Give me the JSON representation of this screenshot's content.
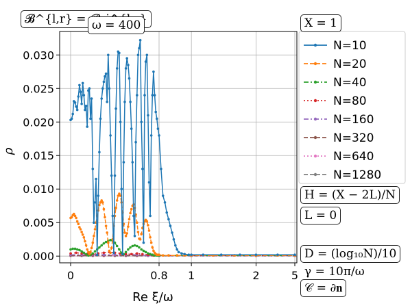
{
  "annotations": {
    "bc": "𝓑^{l,r} = 𝓑_j^{l,r}",
    "omega": "ω = 400",
    "X": "X = 1",
    "H": "H = (X − 2L)/N",
    "L": "L = 0",
    "D": "D = (log₁₀N)/10",
    "gamma": "γ = 10π/ω",
    "C": "𝒞 = ∂𝐧"
  },
  "chart_data": {
    "type": "line",
    "title": "",
    "xlabel": "Re ξ/ω",
    "ylabel": "ρ",
    "x_scale": "piecewise: linear 0–0.8, then reciprocal",
    "xticks": [
      "0",
      "0.8",
      "1",
      "2",
      "5"
    ],
    "yticks": [
      "0.000",
      "0.005",
      "0.010",
      "0.015",
      "0.020",
      "0.025",
      "0.030"
    ],
    "ylim": [
      -0.001,
      0.0335
    ],
    "grid": true,
    "legend": "right, outside plot",
    "series": [
      {
        "name": "N=10",
        "color": "#1f77b4",
        "style": "solid",
        "x": [
          0.0,
          0.01,
          0.02,
          0.03,
          0.04,
          0.05,
          0.06,
          0.07,
          0.08,
          0.09,
          0.1,
          0.11,
          0.12,
          0.13,
          0.14,
          0.15,
          0.16,
          0.17,
          0.18,
          0.19,
          0.2,
          0.21,
          0.22,
          0.23,
          0.24,
          0.25,
          0.26,
          0.27,
          0.28,
          0.29,
          0.3,
          0.31,
          0.32,
          0.33,
          0.34,
          0.35,
          0.36,
          0.37,
          0.38,
          0.39,
          0.4,
          0.41,
          0.42,
          0.43,
          0.44,
          0.45,
          0.46,
          0.47,
          0.48,
          0.49,
          0.5,
          0.51,
          0.52,
          0.53,
          0.54,
          0.55,
          0.56,
          0.57,
          0.58,
          0.59,
          0.6,
          0.61,
          0.62,
          0.63,
          0.64,
          0.65,
          0.66,
          0.67,
          0.68,
          0.69,
          0.7,
          0.71,
          0.72,
          0.73,
          0.74,
          0.75,
          0.76,
          0.77,
          0.78,
          0.79,
          0.8,
          0.81,
          0.82,
          0.83,
          0.84,
          0.85,
          0.86,
          0.87,
          0.88,
          0.89,
          0.9,
          0.91,
          0.93,
          0.95,
          0.98,
          1.0,
          1.1,
          1.3,
          1.6,
          2.0,
          3.0,
          5.0
        ],
        "y": [
          0.0203,
          0.0205,
          0.0212,
          0.0231,
          0.0229,
          0.0223,
          0.0218,
          0.0238,
          0.0255,
          0.0245,
          0.0227,
          0.0258,
          0.024,
          0.0218,
          0.0224,
          0.0193,
          0.0247,
          0.025,
          0.0205,
          0.0235,
          0.013,
          0.005,
          0.008,
          0.0115,
          0.0002,
          0.009,
          0.0155,
          0.0205,
          0.0235,
          0.025,
          0.026,
          0.0268,
          0.0272,
          0.023,
          0.03,
          0.025,
          0.018,
          0.012,
          0.006,
          0.0005,
          0.012,
          0.022,
          0.028,
          0.0305,
          0.0303,
          0.02,
          0.01,
          0.0003,
          0.014,
          0.023,
          0.028,
          0.0295,
          0.0285,
          0.0265,
          0.023,
          0.019,
          0.014,
          0.006,
          0.003,
          0.017,
          0.024,
          0.03,
          0.031,
          0.0322,
          0.02,
          0.013,
          0.002,
          0.024,
          0.029,
          0.03,
          0.021,
          0.011,
          0.006,
          0.018,
          0.024,
          0.0275,
          0.024,
          0.0215,
          0.0205,
          0.019,
          0.018,
          0.013,
          0.009,
          0.008,
          0.0065,
          0.0055,
          0.0045,
          0.0035,
          0.0025,
          0.0016,
          0.001,
          0.0006,
          0.0004,
          0.0003,
          0.0002,
          0.0002,
          0.0002,
          0.0002,
          0.0002,
          0.0002,
          0.0002,
          0.0002
        ]
      },
      {
        "name": "N=20",
        "color": "#ff7f0e",
        "style": "dashed",
        "x": [
          0.0,
          0.01,
          0.02,
          0.03,
          0.04,
          0.05,
          0.06,
          0.07,
          0.08,
          0.09,
          0.1,
          0.11,
          0.12,
          0.13,
          0.14,
          0.15,
          0.16,
          0.17,
          0.18,
          0.19,
          0.2,
          0.21,
          0.22,
          0.23,
          0.24,
          0.25,
          0.26,
          0.27,
          0.28,
          0.29,
          0.3,
          0.31,
          0.32,
          0.33,
          0.34,
          0.35,
          0.36,
          0.37,
          0.38,
          0.39,
          0.4,
          0.41,
          0.42,
          0.43,
          0.44,
          0.45,
          0.46,
          0.47,
          0.48,
          0.49,
          0.5,
          0.51,
          0.52,
          0.53,
          0.54,
          0.55,
          0.56,
          0.57,
          0.58,
          0.59,
          0.6,
          0.61,
          0.62,
          0.63,
          0.64,
          0.65,
          0.66,
          0.67,
          0.68,
          0.69,
          0.7,
          0.71,
          0.72,
          0.73,
          0.74,
          0.75,
          0.76,
          0.77,
          0.78,
          0.79,
          0.8,
          0.82,
          0.85,
          0.9,
          0.95,
          1.0,
          1.2,
          1.5,
          2.0,
          3.0,
          5.0
        ],
        "y": [
          0.0057,
          0.0058,
          0.0061,
          0.0063,
          0.006,
          0.0057,
          0.0052,
          0.0048,
          0.0043,
          0.004,
          0.0036,
          0.0032,
          0.0028,
          0.0022,
          0.0016,
          0.001,
          0.0006,
          0.0003,
          0.0006,
          0.0012,
          0.002,
          0.003,
          0.004,
          0.005,
          0.006,
          0.0068,
          0.0076,
          0.008,
          0.0083,
          0.008,
          0.007,
          0.0058,
          0.0045,
          0.0035,
          0.002,
          0.0008,
          0.0005,
          0.0012,
          0.0025,
          0.0045,
          0.006,
          0.0072,
          0.0083,
          0.009,
          0.0093,
          0.009,
          0.008,
          0.0065,
          0.0048,
          0.0035,
          0.003,
          0.0034,
          0.0044,
          0.0055,
          0.0064,
          0.007,
          0.0075,
          0.0077,
          0.0072,
          0.0062,
          0.005,
          0.0036,
          0.0026,
          0.0025,
          0.0033,
          0.0042,
          0.0048,
          0.0052,
          0.0054,
          0.0052,
          0.0046,
          0.0038,
          0.0028,
          0.002,
          0.0013,
          0.0008,
          0.0005,
          0.0003,
          0.0002,
          0.0002,
          0.0002,
          0.0001,
          0.0001,
          0.0001,
          0.0001,
          0.0001,
          0.0001,
          0.0001,
          0.0001,
          0.0001,
          0.0001
        ]
      },
      {
        "name": "N=40",
        "color": "#2ca02c",
        "style": "dashdot",
        "x": [
          0.0,
          0.02,
          0.04,
          0.06,
          0.08,
          0.1,
          0.12,
          0.14,
          0.16,
          0.18,
          0.2,
          0.22,
          0.24,
          0.26,
          0.28,
          0.3,
          0.32,
          0.34,
          0.36,
          0.38,
          0.4,
          0.42,
          0.44,
          0.46,
          0.48,
          0.5,
          0.52,
          0.54,
          0.56,
          0.58,
          0.6,
          0.62,
          0.64,
          0.66,
          0.68,
          0.7,
          0.72,
          0.74,
          0.76,
          0.78,
          0.8,
          0.85,
          0.9,
          1.0,
          1.5,
          2.0,
          3.0,
          5.0
        ],
        "y": [
          0.001,
          0.0011,
          0.0011,
          0.001,
          0.0009,
          0.0007,
          0.0005,
          0.0003,
          0.0001,
          0.0002,
          0.0004,
          0.0007,
          0.001,
          0.0013,
          0.0016,
          0.0019,
          0.0021,
          0.0023,
          0.0024,
          0.0023,
          0.002,
          0.0015,
          0.001,
          0.0005,
          0.0003,
          0.0006,
          0.001,
          0.0013,
          0.0015,
          0.0016,
          0.0015,
          0.0013,
          0.001,
          0.0008,
          0.0006,
          0.0004,
          0.0003,
          0.0002,
          0.0001,
          0.0001,
          0.0001,
          0.0001,
          0.0001,
          0.0001,
          0.0001,
          0.0001,
          0.0001,
          0.0001
        ]
      },
      {
        "name": "N=80",
        "color": "#d62728",
        "style": "dotted",
        "x": [
          0.0,
          0.05,
          0.1,
          0.15,
          0.2,
          0.25,
          0.3,
          0.35,
          0.4,
          0.45,
          0.5,
          0.55,
          0.6,
          0.65,
          0.7,
          0.75,
          0.8,
          0.9,
          1.0,
          1.5,
          2.0,
          3.0,
          5.0
        ],
        "y": [
          0.0004,
          0.0005,
          0.0004,
          0.0003,
          0.0003,
          0.0004,
          0.0005,
          0.0006,
          0.0005,
          0.0004,
          0.0003,
          0.0003,
          0.0004,
          0.0003,
          0.0002,
          0.0001,
          0.0001,
          0.0001,
          0.0001,
          0.0001,
          0.0001,
          0.0001,
          0.0001
        ]
      },
      {
        "name": "N=160",
        "color": "#9467bd",
        "style": "dashdot",
        "x": [
          0.0,
          0.1,
          0.2,
          0.3,
          0.4,
          0.5,
          0.6,
          0.7,
          0.8,
          1.0,
          2.0,
          5.0
        ],
        "y": [
          0.0002,
          0.0002,
          0.0002,
          0.0002,
          0.0002,
          0.0002,
          0.0002,
          0.0001,
          0.0001,
          0.0001,
          0.0001,
          0.0001
        ]
      },
      {
        "name": "N=320",
        "color": "#8c564b",
        "style": "dashed",
        "x": [
          0.0,
          0.1,
          0.2,
          0.3,
          0.4,
          0.5,
          0.6,
          0.7,
          0.8,
          1.0,
          2.0,
          5.0
        ],
        "y": [
          0.0001,
          0.0001,
          0.0001,
          0.0001,
          0.0001,
          0.0001,
          0.0001,
          0.0001,
          0.0001,
          0.0001,
          0.0001,
          0.0001
        ]
      },
      {
        "name": "N=640",
        "color": "#e377c2",
        "style": "dotted",
        "x": [
          0.0,
          0.1,
          0.2,
          0.3,
          0.4,
          0.5,
          0.6,
          0.7,
          0.8,
          1.0,
          2.0,
          5.0
        ],
        "y": [
          5e-05,
          5e-05,
          5e-05,
          5e-05,
          5e-05,
          5e-05,
          5e-05,
          5e-05,
          5e-05,
          5e-05,
          5e-05,
          5e-05
        ]
      },
      {
        "name": "N=1280",
        "color": "#7f7f7f",
        "style": "dashed",
        "x": [
          0.0,
          0.1,
          0.2,
          0.3,
          0.4,
          0.5,
          0.6,
          0.7,
          0.8,
          1.0,
          2.0,
          5.0
        ],
        "y": [
          2e-05,
          2e-05,
          2e-05,
          2e-05,
          2e-05,
          2e-05,
          2e-05,
          2e-05,
          2e-05,
          2e-05,
          2e-05,
          2e-05
        ]
      }
    ]
  }
}
